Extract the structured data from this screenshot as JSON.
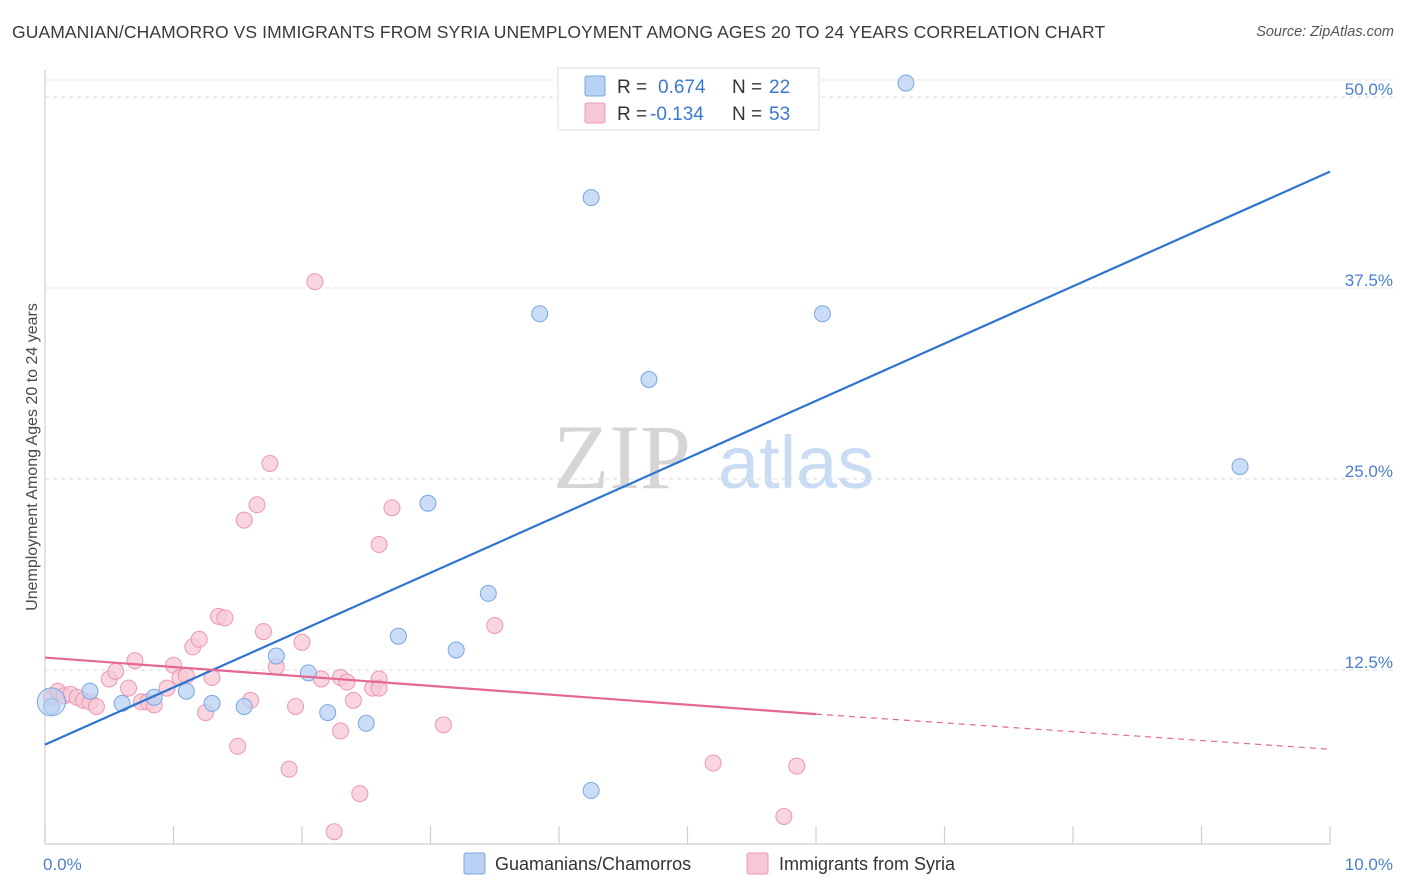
{
  "title": "GUAMANIAN/CHAMORRO VS IMMIGRANTS FROM SYRIA UNEMPLOYMENT AMONG AGES 20 TO 24 YEARS CORRELATION CHART",
  "source": "Source: ZipAtlas.com",
  "watermark": {
    "zip": "ZIP",
    "atlas": "atlas"
  },
  "colors": {
    "blue_fill": "#b9d1f3",
    "blue_stroke": "#7aa6e0",
    "blue_line": "#2f74d0",
    "pink_fill": "#f7c7d6",
    "pink_stroke": "#eb98b4",
    "pink_line": "#e46894",
    "tick_label": "#4a7fd0",
    "grid": "#dddddd"
  },
  "legend": {
    "rows": [
      {
        "r_label": "R =",
        "r_value": "0.674",
        "n_label": "N =",
        "n_value": "22",
        "series": "blue"
      },
      {
        "r_label": "R =",
        "r_value": "-0.134",
        "n_label": "N =",
        "n_value": "53",
        "series": "pink"
      }
    ]
  },
  "chart_data": {
    "type": "scatter",
    "title": "GUAMANIAN/CHAMORRO VS IMMIGRANTS FROM SYRIA UNEMPLOYMENT AMONG AGES 20 TO 24 YEARS CORRELATION CHART",
    "xlabel": "",
    "ylabel": "Unemployment Among Ages 20 to 24 years",
    "xlim": [
      0,
      10
    ],
    "ylim": [
      0,
      50
    ],
    "x_tick_labels": [
      "0.0%",
      "10.0%"
    ],
    "y_ticks": [
      12.5,
      25.0,
      37.5,
      50.0
    ],
    "y_tick_labels": [
      "12.5%",
      "25.0%",
      "37.5%",
      "50.0%"
    ],
    "grid": true,
    "legend_position": "top-center",
    "series": [
      {
        "name": "Guamanians/Chamorros",
        "color": "#b9d1f3",
        "R": 0.674,
        "N": 22,
        "trend": {
          "x0": 0,
          "y0": 6.5,
          "x1": 10,
          "y1": 44.0
        },
        "points": [
          [
            0.05,
            9.0
          ],
          [
            0.35,
            10.0
          ],
          [
            0.6,
            9.2
          ],
          [
            0.85,
            9.6
          ],
          [
            1.1,
            10.0
          ],
          [
            1.3,
            9.2
          ],
          [
            1.55,
            9.0
          ],
          [
            1.8,
            12.3
          ],
          [
            2.05,
            11.2
          ],
          [
            2.2,
            8.6
          ],
          [
            2.5,
            7.9
          ],
          [
            2.75,
            13.6
          ],
          [
            2.98,
            22.3
          ],
          [
            3.2,
            12.7
          ],
          [
            3.45,
            16.4
          ],
          [
            3.85,
            34.7
          ],
          [
            4.25,
            42.3
          ],
          [
            4.25,
            3.5
          ],
          [
            4.7,
            30.4
          ],
          [
            6.05,
            34.7
          ],
          [
            6.7,
            49.8
          ],
          [
            9.3,
            24.7
          ]
        ]
      },
      {
        "name": "Immigrants from Syria",
        "color": "#f7c7d6",
        "R": -0.134,
        "N": 53,
        "trend": {
          "x0": 0,
          "y0": 12.2,
          "x1": 6.0,
          "y1": 8.5,
          "dash_x1": 10,
          "dash_y1": 6.2
        },
        "points": [
          [
            0.05,
            9.6
          ],
          [
            0.1,
            10.0
          ],
          [
            0.15,
            9.7
          ],
          [
            0.2,
            9.8
          ],
          [
            0.25,
            9.6
          ],
          [
            0.3,
            9.4
          ],
          [
            0.35,
            9.3
          ],
          [
            0.4,
            9.0
          ],
          [
            0.5,
            10.8
          ],
          [
            0.55,
            11.3
          ],
          [
            0.65,
            10.2
          ],
          [
            0.7,
            12.0
          ],
          [
            0.75,
            9.3
          ],
          [
            0.8,
            9.3
          ],
          [
            0.85,
            9.1
          ],
          [
            0.95,
            10.2
          ],
          [
            1.0,
            11.7
          ],
          [
            1.05,
            10.9
          ],
          [
            1.1,
            11.0
          ],
          [
            1.15,
            12.9
          ],
          [
            1.2,
            13.4
          ],
          [
            1.25,
            8.6
          ],
          [
            1.3,
            10.9
          ],
          [
            1.35,
            14.9
          ],
          [
            1.4,
            14.8
          ],
          [
            1.5,
            6.4
          ],
          [
            1.55,
            21.2
          ],
          [
            1.6,
            9.4
          ],
          [
            1.65,
            22.2
          ],
          [
            1.7,
            13.9
          ],
          [
            1.75,
            24.9
          ],
          [
            1.8,
            11.6
          ],
          [
            1.9,
            4.9
          ],
          [
            1.95,
            9.0
          ],
          [
            2.0,
            13.2
          ],
          [
            2.1,
            36.8
          ],
          [
            2.15,
            10.8
          ],
          [
            2.25,
            0.8
          ],
          [
            2.3,
            10.9
          ],
          [
            2.3,
            7.4
          ],
          [
            2.35,
            10.6
          ],
          [
            2.4,
            9.4
          ],
          [
            2.45,
            3.3
          ],
          [
            2.55,
            10.2
          ],
          [
            2.6,
            10.8
          ],
          [
            2.6,
            10.2
          ],
          [
            2.6,
            19.6
          ],
          [
            2.7,
            22.0
          ],
          [
            3.1,
            7.8
          ],
          [
            3.5,
            14.3
          ],
          [
            5.2,
            5.3
          ],
          [
            5.75,
            1.8
          ],
          [
            5.85,
            5.1
          ]
        ]
      }
    ]
  },
  "bottom_legend": {
    "items": [
      {
        "label": "Guamanians/Chamorros",
        "series": "blue"
      },
      {
        "label": "Immigrants from Syria",
        "series": "pink"
      }
    ]
  }
}
